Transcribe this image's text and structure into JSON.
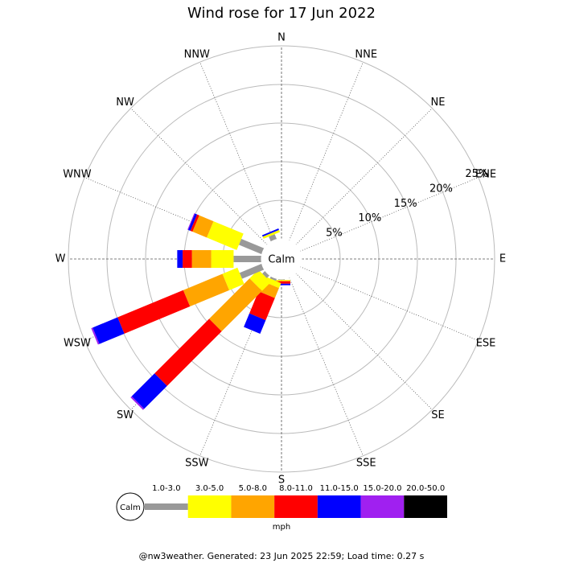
{
  "chart_data": {
    "type": "windrose",
    "title": "Wind rose for 17 Jun 2022",
    "directions": [
      "N",
      "NNE",
      "NE",
      "ENE",
      "E",
      "ESE",
      "SE",
      "SSE",
      "S",
      "SSW",
      "SW",
      "WSW",
      "W",
      "WNW",
      "NW",
      "NNW"
    ],
    "calm_label": "Calm",
    "series": [
      {
        "name": "1.0-3.0",
        "color": "#999999",
        "values": [
          0,
          0,
          0,
          0,
          0,
          0,
          0,
          0,
          0.1,
          0.3,
          0.5,
          3.1,
          3.6,
          3.2,
          0,
          0.7
        ]
      },
      {
        "name": "3.0-5.0",
        "color": "#ffff00",
        "values": [
          0,
          0,
          0,
          0,
          0,
          0,
          0,
          0,
          0.1,
          0.7,
          1.6,
          2.1,
          2.9,
          4.2,
          0,
          0.3
        ]
      },
      {
        "name": "5.0-8.0",
        "color": "#ffa500",
        "values": [
          0,
          0,
          0,
          0,
          0,
          0,
          0,
          0,
          0.1,
          1.4,
          7.4,
          5.5,
          2.5,
          2.0,
          0,
          0
        ]
      },
      {
        "name": "8.0-11.0",
        "color": "#ff0000",
        "values": [
          0,
          0,
          0,
          0,
          0,
          0,
          0,
          0,
          0.3,
          3.1,
          10,
          9.2,
          1.2,
          0.3,
          0,
          0
        ]
      },
      {
        "name": "11.0-15.0",
        "color": "#0000ff",
        "values": [
          0,
          0,
          0,
          0,
          0,
          0,
          0,
          0,
          0.2,
          1.9,
          4.2,
          3.5,
          0.7,
          0.3,
          0,
          0.2
        ]
      },
      {
        "name": "15.0-20.0",
        "color": "#a020f0",
        "values": [
          0,
          0,
          0,
          0,
          0,
          0,
          0,
          0,
          0,
          0,
          0.2,
          0.2,
          0,
          0.1,
          0,
          0
        ]
      },
      {
        "name": "20.0-50.0",
        "color": "#000000",
        "values": [
          0,
          0,
          0,
          0,
          0,
          0,
          0,
          0,
          0,
          0,
          0,
          0,
          0,
          0,
          0,
          0
        ]
      }
    ],
    "rlim": [
      0,
      25
    ],
    "rticks": [
      {
        "value": 5,
        "label": "5%"
      },
      {
        "value": 10,
        "label": "10%"
      },
      {
        "value": 15,
        "label": "15%"
      },
      {
        "value": 20,
        "label": "20%"
      },
      {
        "value": 25,
        "label": "25%"
      }
    ],
    "legend_unit": "mph"
  },
  "footer": "@nw3weather. Generated: 23 Jun 2025 22:59; Load time: 0.27 s"
}
